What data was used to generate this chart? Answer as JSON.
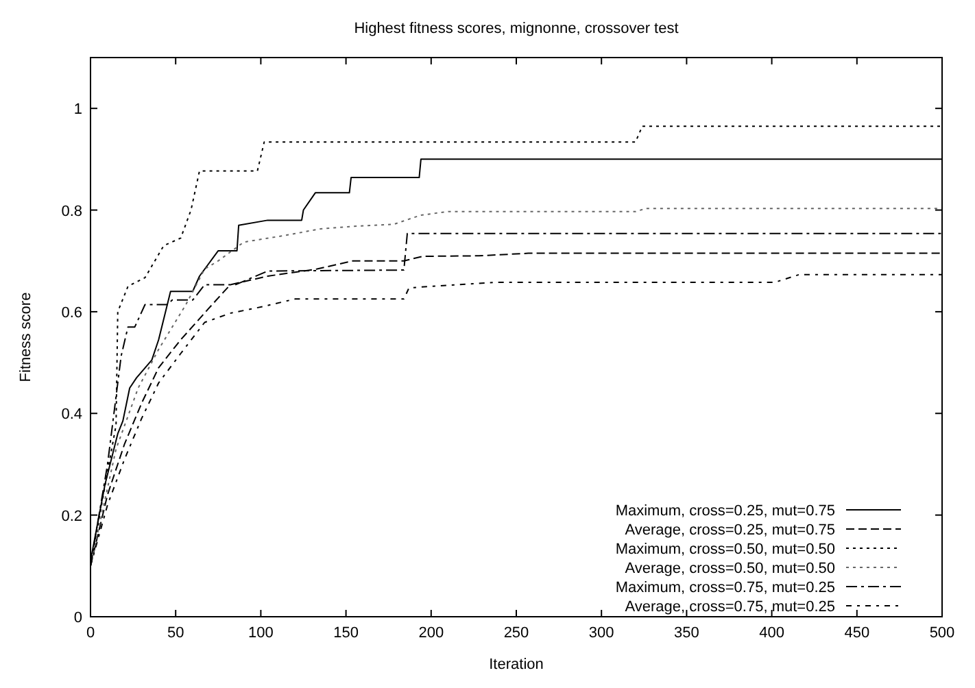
{
  "chart_data": {
    "type": "line",
    "title": "Highest fitness scores, mignonne, crossover test",
    "xlabel": "Iteration",
    "ylabel": "Fitness score",
    "xlim": [
      0,
      500
    ],
    "ylim": [
      0,
      1.1
    ],
    "xticks": [
      0,
      50,
      100,
      150,
      200,
      250,
      300,
      350,
      400,
      450,
      500
    ],
    "yticks": [
      0,
      0.2,
      0.4,
      0.6,
      0.8,
      1
    ],
    "grid": false,
    "legend": "bottom right",
    "marker": "none",
    "series": [
      {
        "name": "Maximum, cross=0.25, mut=0.75",
        "color": "#000000",
        "line_style": "solid",
        "x": [
          0,
          8.5,
          16,
          19,
          23,
          27,
          36,
          40,
          47,
          60,
          64,
          75,
          86,
          87,
          104,
          124,
          125,
          132,
          152,
          153,
          193,
          194,
          500
        ],
        "values": [
          0.11,
          0.26,
          0.36,
          0.385,
          0.45,
          0.47,
          0.505,
          0.545,
          0.64,
          0.64,
          0.67,
          0.72,
          0.72,
          0.77,
          0.78,
          0.78,
          0.8,
          0.834,
          0.834,
          0.864,
          0.864,
          0.9,
          0.9
        ]
      },
      {
        "name": "Average, cross=0.25, mut=0.75",
        "color": "#000000",
        "line_style": "dashed",
        "x": [
          0,
          10,
          20,
          30,
          40,
          53,
          69,
          82,
          104,
          133,
          154,
          184,
          195,
          228,
          257,
          500
        ],
        "values": [
          0.1,
          0.24,
          0.34,
          0.42,
          0.49,
          0.545,
          0.605,
          0.653,
          0.67,
          0.684,
          0.7,
          0.7,
          0.709,
          0.71,
          0.715,
          0.715
        ]
      },
      {
        "name": "Maximum, cross=0.50, mut=0.50",
        "color": "#000000",
        "line_style": "dotted",
        "x": [
          0,
          15,
          16,
          22,
          32,
          43,
          53,
          59,
          64,
          98,
          102,
          320,
          324,
          500
        ],
        "values": [
          0.1,
          0.377,
          0.6,
          0.65,
          0.667,
          0.73,
          0.745,
          0.8,
          0.877,
          0.877,
          0.934,
          0.934,
          0.965,
          0.965
        ]
      },
      {
        "name": "Average, cross=0.50, mut=0.50",
        "color": "#666666",
        "line_style": "dotted",
        "x": [
          0,
          15,
          28,
          40,
          56,
          67,
          75,
          90,
          114,
          135,
          154,
          178,
          194,
          210,
          320,
          326,
          500
        ],
        "values": [
          0.1,
          0.33,
          0.45,
          0.526,
          0.614,
          0.684,
          0.7,
          0.737,
          0.75,
          0.763,
          0.768,
          0.772,
          0.79,
          0.797,
          0.797,
          0.803,
          0.803
        ]
      },
      {
        "name": "Maximum, cross=0.75, mut=0.25",
        "color": "#000000",
        "line_style": "dashdot",
        "x": [
          0,
          10,
          18,
          22,
          26,
          32,
          45,
          48,
          60,
          67,
          85,
          104,
          184,
          186,
          500
        ],
        "values": [
          0.1,
          0.3,
          0.513,
          0.57,
          0.57,
          0.614,
          0.614,
          0.623,
          0.623,
          0.653,
          0.653,
          0.68,
          0.682,
          0.754,
          0.754
        ]
      },
      {
        "name": "Average, cross=0.75, mut=0.25",
        "color": "#000000",
        "line_style": "dashdotsparse",
        "x": [
          0,
          10,
          20,
          30,
          40,
          53,
          67,
          82,
          101,
          120,
          184,
          187,
          215,
          239,
          402,
          416,
          500
        ],
        "values": [
          0.1,
          0.22,
          0.31,
          0.39,
          0.46,
          0.518,
          0.579,
          0.597,
          0.61,
          0.625,
          0.625,
          0.647,
          0.653,
          0.658,
          0.658,
          0.673,
          0.673
        ]
      }
    ]
  }
}
